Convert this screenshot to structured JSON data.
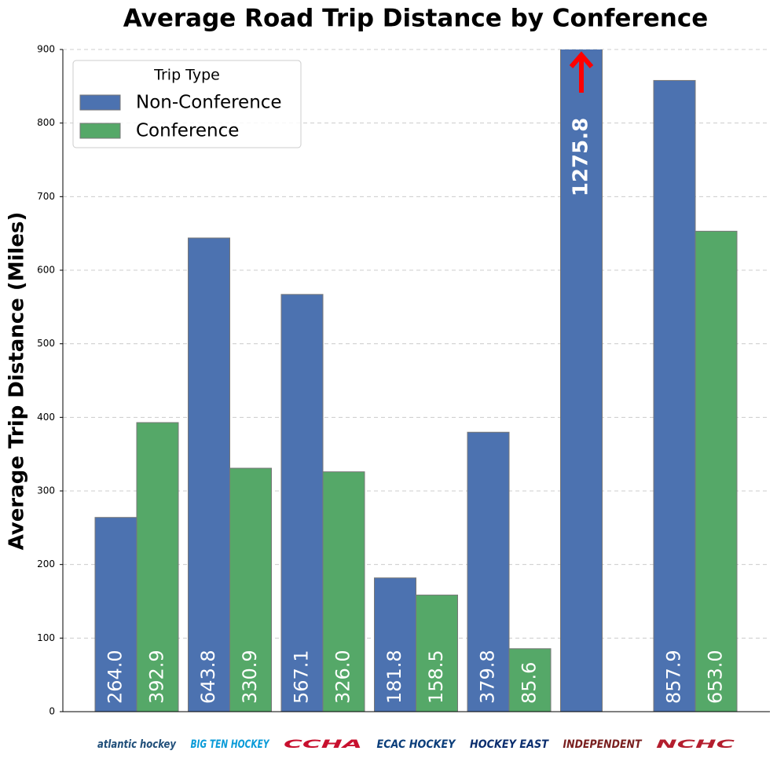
{
  "chart_data": {
    "type": "bar",
    "title": "Average Road Trip Distance by Conference",
    "y_label": "Average Trip Distance (Miles)",
    "categories": [
      "atlantic hockey",
      "BIG TEN HOCKEY",
      "CCHA",
      "ECAC HOCKEY",
      "HOCKEY EAST",
      "INDEPENDENT",
      "NCHC"
    ],
    "legend_title": "Trip Type",
    "legend_position": "upper left",
    "series": [
      {
        "name": "Non-Conference",
        "color": "#4c72b0",
        "values": [
          264.0,
          643.8,
          567.1,
          181.8,
          379.8,
          1275.8,
          857.9
        ],
        "value_labels": [
          "264.0",
          "643.8",
          "567.1",
          "181.8",
          "379.8",
          "1275.8",
          "857.9"
        ]
      },
      {
        "name": "Conference",
        "color": "#55a868",
        "values": [
          392.9,
          330.9,
          326.0,
          158.5,
          85.6,
          null,
          653.0
        ],
        "value_labels": [
          "392.9",
          "330.9",
          "326.0",
          "158.5",
          "85.6",
          null,
          "653.0"
        ]
      }
    ],
    "ylim": [
      0,
      900
    ],
    "yticks": [
      0,
      100,
      200,
      300,
      400,
      500,
      600,
      700,
      800,
      900
    ],
    "grid": true
  }
}
